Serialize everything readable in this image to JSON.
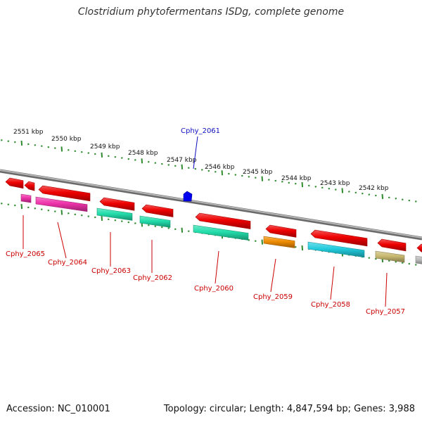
{
  "title": "Clostridium phytofermentans ISDg, complete genome",
  "footer": {
    "accession": "Accession: NC_010001",
    "summary": "Topology: circular; Length: 4,847,594 bp; Genes: 3,988"
  },
  "colors": {
    "backbone": "#8a8a8a",
    "ticks": "#2e8b2e",
    "forward_label": "#1010c0",
    "reverse_label": "#cc0000",
    "feature_red": "#ee0000",
    "feature_magenta": "#ee33aa",
    "feature_green": "#22ddaa",
    "feature_orange": "#f08c00",
    "feature_cyan": "#22ccdd",
    "feature_olive": "#c8b870",
    "feature_gray": "#bbbbbb",
    "feature_blue": "#0000ee"
  },
  "ticks": [
    "2551 kbp",
    "2550 kbp",
    "2549 kbp",
    "2548 kbp",
    "2547 kbp",
    "2546 kbp",
    "2545 kbp",
    "2544 kbp",
    "2543 kbp",
    "2542 kbp"
  ],
  "genes": [
    {
      "label": "Cphy_2061",
      "strand": "forward"
    },
    {
      "label": "Cphy_2065",
      "strand": "reverse"
    },
    {
      "label": "Cphy_2064",
      "strand": "reverse"
    },
    {
      "label": "Cphy_2063",
      "strand": "reverse"
    },
    {
      "label": "Cphy_2062",
      "strand": "reverse"
    },
    {
      "label": "Cphy_2060",
      "strand": "reverse"
    },
    {
      "label": "Cphy_2059",
      "strand": "reverse"
    },
    {
      "label": "Cphy_2058",
      "strand": "reverse"
    },
    {
      "label": "Cphy_2057",
      "strand": "reverse"
    }
  ]
}
